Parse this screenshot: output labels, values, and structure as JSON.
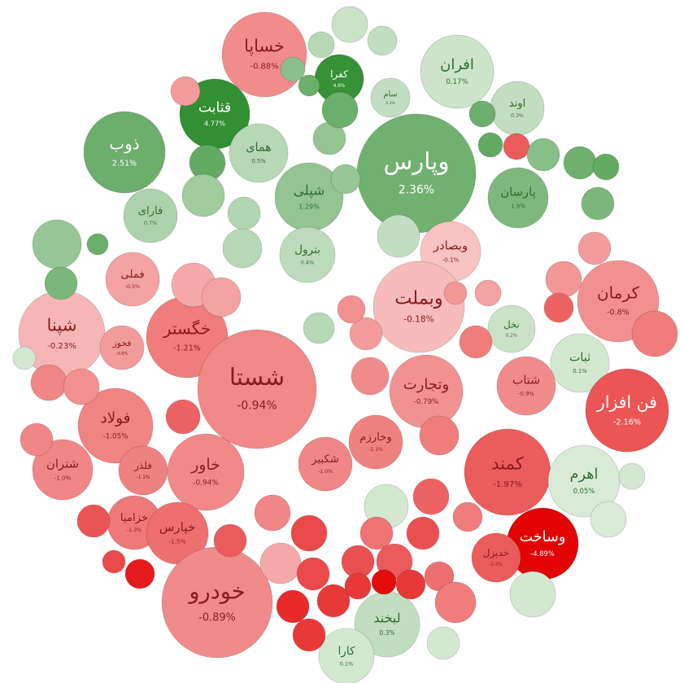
{
  "chart_data": {
    "type": "bubble",
    "categories": [
      "خساپا",
      "افران",
      "قثابت",
      "کفرا",
      "ذوب",
      "وپارس",
      "سام",
      "اوند",
      "همای",
      "شپلی",
      "پارسان",
      "فارای",
      "بترول",
      "وبصادر",
      "فملی",
      "وبملت",
      "کرمان",
      "شپنا",
      "خگستر",
      "فخوز",
      "نخل",
      "ثبات",
      "شستا",
      "وتجارت",
      "شتاب",
      "فن افزار",
      "فولاد",
      "وخارزم",
      "شتران",
      "فلذر",
      "خاور",
      "شکبیر",
      "کمند",
      "اهرم",
      "خزامیا",
      "خپارس",
      "وساخت",
      "خدیزل",
      "خودرو",
      "لبخند",
      "کارا",
      null,
      null,
      null,
      null,
      null,
      null,
      null,
      null,
      null,
      null,
      null,
      null,
      null,
      null,
      null,
      null,
      null,
      null,
      null,
      null,
      null,
      null,
      null,
      null,
      null,
      null,
      null,
      null,
      null,
      null,
      null,
      null,
      null,
      null,
      null,
      null,
      null,
      null,
      null,
      null,
      null,
      null,
      null,
      null,
      null,
      null,
      null,
      null,
      null,
      null,
      null,
      null,
      null,
      null,
      null,
      null,
      null,
      null,
      null,
      null,
      null,
      null,
      null,
      null,
      null,
      null,
      null,
      null,
      null,
      null
    ],
    "values": [
      -0.88,
      0.17,
      4.77,
      4.6,
      2.51,
      2.36,
      0.3,
      0.3,
      0.5,
      1.29,
      1.9,
      0.7,
      0.4,
      -0.1,
      -0.5,
      -0.18,
      -0.8,
      -0.23,
      -1.21,
      -0.6,
      0.2,
      0.1,
      -0.94,
      -0.79,
      -0.9,
      -2.16,
      -1.05,
      -1.1,
      -1.0,
      -1.1,
      -0.94,
      -1.0,
      -1.97,
      0.05,
      -1.3,
      -1.5,
      -4.89,
      -2.0,
      -0.89,
      0.3,
      0.1,
      0.2,
      0.3,
      0.5,
      1.5,
      2.5,
      -0.6,
      2.8,
      1,
      0.6,
      0.5,
      1.2,
      0.3,
      1.3,
      2.5,
      2.5,
      2.8,
      -2,
      1.6,
      2.4,
      2.8,
      2,
      -0.6,
      -0.7,
      -1.8,
      -1.2,
      -1,
      -0.8,
      -1.8,
      1.2,
      2,
      2.5,
      -0.4,
      -0.5,
      -0.6,
      -0.8,
      0.5,
      -0.9,
      -1.2,
      -1.2,
      0.1,
      -1.8,
      -1.2,
      -2.3,
      -1.4,
      -2,
      -2.3,
      -2.5,
      -1,
      -2,
      -0.4,
      -2.5,
      -3,
      -3.5,
      -3,
      -4.5,
      -3,
      -1.5,
      -1.2,
      0.1,
      0.05,
      0.1,
      -2.2,
      -4,
      -2.5,
      -3,
      0.1,
      -0.7,
      -0.5,
      -1,
      0.1
    ],
    "value_labels": [
      "-0.88%",
      "0.17%",
      "4.77%",
      "4.6%",
      "2.51%",
      "2.36%",
      "0.3%",
      "0.3%",
      "0.5%",
      "1.29%",
      "1.9%",
      "0.7%",
      "0.4%",
      "-0.1%",
      "-0.5%",
      "-0.18%",
      "-0.8%",
      "-0.23%",
      "-1.21%",
      "-0.6%",
      "0.2%",
      "0.1%",
      "-0.94%",
      "-0.79%",
      "-0.9%",
      "-2.16%",
      "-1.05%",
      "-1.1%",
      "-1.0%",
      "-1.1%",
      "-0.94%",
      "-1.0%",
      "-1.97%",
      "0.05%",
      "-1.3%",
      "-1.5%",
      "-4.89%",
      "-2.0%",
      "-0.89%",
      "0.3%",
      "0.1%",
      null,
      null,
      null,
      null,
      null,
      null,
      null,
      null,
      null,
      null,
      null,
      null,
      null,
      null,
      null,
      null,
      null,
      null,
      null,
      null,
      null,
      null,
      null,
      null,
      null,
      null,
      null,
      null,
      null,
      null,
      null,
      null,
      null,
      null,
      null,
      null,
      null,
      null,
      null,
      null,
      null,
      null,
      null,
      null,
      null,
      null,
      null,
      null,
      null,
      null,
      null,
      null,
      null,
      null,
      null,
      null,
      null,
      null,
      null,
      null,
      null,
      null,
      null,
      null,
      null,
      null,
      null,
      null,
      null,
      null
    ],
    "sizes": [
      52,
      45,
      43,
      30,
      50,
      73,
      24,
      33,
      36,
      42,
      37,
      33,
      34,
      37,
      33,
      56,
      50,
      53,
      50,
      27,
      29,
      36,
      73,
      45,
      36,
      51,
      46,
      33,
      37,
      30,
      47,
      33,
      53,
      44,
      33,
      38,
      44,
      30,
      68,
      40,
      34,
      22,
      18,
      16,
      15,
      13,
      18,
      22,
      26,
      20,
      24,
      18,
      26,
      20,
      22,
      16,
      15,
      16,
      20,
      20,
      16,
      20,
      20,
      22,
      18,
      28,
      22,
      22,
      21,
      30,
      20,
      13,
      27,
      24,
      20,
      17,
      19,
      23,
      20,
      24,
      27,
      22,
      18,
      20,
      20,
      22,
      20,
      22,
      22,
      20,
      25,
      20,
      20,
      20,
      16,
      15,
      18,
      18,
      25,
      28,
      22,
      16,
      20,
      18,
      14,
      20,
      20,
      14,
      16,
      20,
      14
    ]
  }
}
